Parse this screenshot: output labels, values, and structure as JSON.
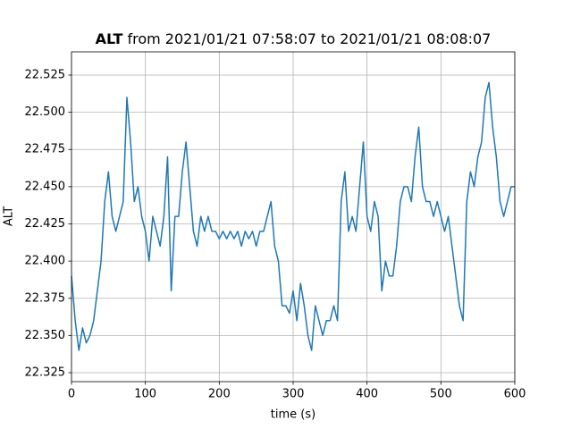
{
  "chart_data": {
    "type": "line",
    "title_var": "ALT",
    "title_range": "from 2021/01/21 07:58:07 to 2021/01/21 08:08:07",
    "xlabel": "time (s)",
    "ylabel": "ALT",
    "xlim": [
      0,
      600
    ],
    "xticks": [
      0,
      100,
      200,
      300,
      400,
      500,
      600
    ],
    "ylim": [
      22.319,
      22.5406
    ],
    "yticks": [
      22.325,
      {
        "value": 22.35,
        "label": "22.350"
      },
      22.375,
      {
        "value": 22.4,
        "label": "22.400"
      },
      22.425,
      {
        "value": 22.45,
        "label": "22.450"
      },
      22.475,
      {
        "value": 22.5,
        "label": "22.500"
      },
      22.525
    ],
    "grid": true,
    "series": [
      {
        "color": "#1f77b4",
        "x": [
          0,
          5,
          10,
          15,
          20,
          25,
          30,
          35,
          40,
          45,
          50,
          55,
          60,
          65,
          70,
          75,
          80,
          85,
          90,
          95,
          100,
          105,
          110,
          115,
          120,
          125,
          130,
          135,
          140,
          145,
          150,
          155,
          160,
          165,
          170,
          175,
          180,
          185,
          190,
          195,
          200,
          205,
          210,
          215,
          220,
          225,
          230,
          235,
          240,
          245,
          250,
          255,
          260,
          265,
          270,
          275,
          280,
          285,
          290,
          295,
          300,
          305,
          310,
          315,
          320,
          325,
          330,
          335,
          340,
          345,
          350,
          355,
          360,
          365,
          370,
          375,
          380,
          385,
          390,
          395,
          400,
          405,
          410,
          415,
          420,
          425,
          430,
          435,
          440,
          445,
          450,
          455,
          460,
          465,
          470,
          475,
          480,
          485,
          490,
          495,
          500,
          505,
          510,
          515,
          520,
          525,
          530,
          535,
          540,
          545,
          550,
          555,
          560,
          565,
          570,
          575,
          580,
          585,
          590,
          595,
          600
        ],
        "values": [
          22.39,
          22.36,
          22.34,
          22.355,
          22.345,
          22.35,
          22.36,
          22.38,
          22.4,
          22.44,
          22.46,
          22.43,
          22.42,
          22.43,
          22.44,
          22.51,
          22.48,
          22.44,
          22.45,
          22.43,
          22.42,
          22.4,
          22.43,
          22.42,
          22.41,
          22.43,
          22.47,
          22.38,
          22.43,
          22.43,
          22.46,
          22.48,
          22.45,
          22.42,
          22.41,
          22.43,
          22.42,
          22.43,
          22.42,
          22.42,
          22.415,
          22.42,
          22.415,
          22.42,
          22.415,
          22.42,
          22.41,
          22.42,
          22.415,
          22.42,
          22.41,
          22.42,
          22.42,
          22.43,
          22.44,
          22.41,
          22.4,
          22.37,
          22.37,
          22.365,
          22.38,
          22.36,
          22.385,
          22.37,
          22.35,
          22.34,
          22.37,
          22.36,
          22.35,
          22.36,
          22.36,
          22.37,
          22.36,
          22.44,
          22.46,
          22.42,
          22.43,
          22.42,
          22.45,
          22.48,
          22.43,
          22.42,
          22.44,
          22.43,
          22.38,
          22.4,
          22.39,
          22.39,
          22.41,
          22.44,
          22.45,
          22.45,
          22.44,
          22.47,
          22.49,
          22.45,
          22.44,
          22.44,
          22.43,
          22.44,
          22.43,
          22.42,
          22.43,
          22.41,
          22.39,
          22.37,
          22.36,
          22.44,
          22.46,
          22.45,
          22.47,
          22.48,
          22.51,
          22.52,
          22.49,
          22.47,
          22.44,
          22.43,
          22.44,
          22.45,
          22.45
        ]
      }
    ]
  }
}
